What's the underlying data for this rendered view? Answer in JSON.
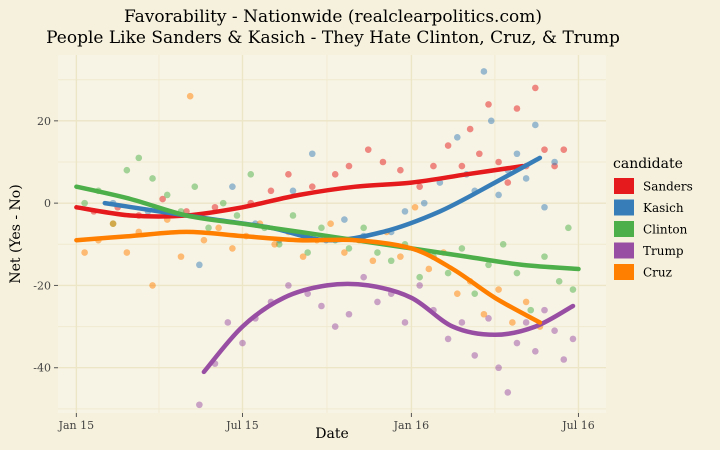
{
  "chart_data": {
    "type": "scatter",
    "title_lines": [
      "Favorability - Nationwide (realclearpolitics.com)",
      "People Like Sanders & Kasich - They Hate Clinton, Cruz, & Trump"
    ],
    "xlabel": "Date",
    "ylabel": "Net (Yes - No)",
    "x_ticks": [
      "Jan 15",
      "Jul 15",
      "Jan 16",
      "Jul 16"
    ],
    "x_range": [
      "2014-12-12",
      "2016-07-31"
    ],
    "y_ticks": [
      -40,
      -20,
      0,
      20
    ],
    "ylim": [
      -51,
      36
    ],
    "grid": true,
    "legend": {
      "title": "candidate",
      "position": "right"
    },
    "series": [
      {
        "name": "Sanders",
        "color": "#e41a1c",
        "trend": [
          [
            "2015-01-01",
            -1
          ],
          [
            "2015-03-01",
            -3
          ],
          [
            "2015-05-01",
            -3
          ],
          [
            "2015-07-01",
            -1
          ],
          [
            "2015-09-01",
            2
          ],
          [
            "2015-11-01",
            4
          ],
          [
            "2016-01-01",
            5
          ],
          [
            "2016-03-01",
            7
          ],
          [
            "2016-05-01",
            9
          ]
        ],
        "points": [
          [
            "2015-01-20",
            -2
          ],
          [
            "2015-02-15",
            -1
          ],
          [
            "2015-03-10",
            -3
          ],
          [
            "2015-04-05",
            1
          ],
          [
            "2015-05-01",
            -2
          ],
          [
            "2015-06-01",
            -1
          ],
          [
            "2015-07-10",
            0
          ],
          [
            "2015-08-01",
            3
          ],
          [
            "2015-08-20",
            7
          ],
          [
            "2015-09-15",
            4
          ],
          [
            "2015-10-10",
            7
          ],
          [
            "2015-10-25",
            9
          ],
          [
            "2015-11-15",
            13
          ],
          [
            "2015-12-01",
            10
          ],
          [
            "2015-12-20",
            8
          ],
          [
            "2016-01-10",
            4
          ],
          [
            "2016-01-25",
            9
          ],
          [
            "2016-02-10",
            14
          ],
          [
            "2016-02-25",
            9
          ],
          [
            "2016-03-05",
            18
          ],
          [
            "2016-03-15",
            12
          ],
          [
            "2016-03-25",
            24
          ],
          [
            "2016-04-05",
            10
          ],
          [
            "2016-04-15",
            5
          ],
          [
            "2016-04-25",
            23
          ],
          [
            "2016-05-05",
            9
          ],
          [
            "2016-05-15",
            28
          ],
          [
            "2016-05-25",
            13
          ],
          [
            "2016-06-05",
            9
          ],
          [
            "2016-06-15",
            13
          ]
        ]
      },
      {
        "name": "Kasich",
        "color": "#377eb8",
        "trend": [
          [
            "2015-02-01",
            0
          ],
          [
            "2015-04-01",
            -2
          ],
          [
            "2015-06-01",
            -4
          ],
          [
            "2015-08-01",
            -6
          ],
          [
            "2015-10-01",
            -9
          ],
          [
            "2015-12-01",
            -7
          ],
          [
            "2016-02-01",
            -2
          ],
          [
            "2016-04-01",
            5
          ],
          [
            "2016-05-20",
            11
          ]
        ],
        "points": [
          [
            "2015-02-10",
            0
          ],
          [
            "2015-03-20",
            -2
          ],
          [
            "2015-05-15",
            -15
          ],
          [
            "2015-06-20",
            4
          ],
          [
            "2015-07-15",
            -5
          ],
          [
            "2015-08-10",
            -9
          ],
          [
            "2015-08-25",
            3
          ],
          [
            "2015-09-15",
            12
          ],
          [
            "2015-09-30",
            -9
          ],
          [
            "2015-10-20",
            -4
          ],
          [
            "2015-11-10",
            -8
          ],
          [
            "2015-12-10",
            -7
          ],
          [
            "2015-12-25",
            -2
          ],
          [
            "2016-01-15",
            0
          ],
          [
            "2016-02-01",
            5
          ],
          [
            "2016-02-20",
            16
          ],
          [
            "2016-03-01",
            7
          ],
          [
            "2016-03-10",
            3
          ],
          [
            "2016-03-20",
            32
          ],
          [
            "2016-03-28",
            20
          ],
          [
            "2016-04-05",
            2
          ],
          [
            "2016-04-15",
            8
          ],
          [
            "2016-04-25",
            12
          ],
          [
            "2016-05-05",
            6
          ],
          [
            "2016-05-15",
            19
          ],
          [
            "2016-05-25",
            -1
          ],
          [
            "2016-06-05",
            10
          ]
        ]
      },
      {
        "name": "Clinton",
        "color": "#4daf4a",
        "trend": [
          [
            "2015-01-01",
            4
          ],
          [
            "2015-03-01",
            1
          ],
          [
            "2015-05-01",
            -3
          ],
          [
            "2015-07-01",
            -5
          ],
          [
            "2015-09-01",
            -7
          ],
          [
            "2015-11-01",
            -9
          ],
          [
            "2016-01-01",
            -11
          ],
          [
            "2016-03-01",
            -13
          ],
          [
            "2016-05-01",
            -15
          ],
          [
            "2016-07-01",
            -16
          ]
        ],
        "points": [
          [
            "2015-01-10",
            0
          ],
          [
            "2015-01-25",
            3
          ],
          [
            "2015-02-10",
            -5
          ],
          [
            "2015-02-25",
            8
          ],
          [
            "2015-03-10",
            11
          ],
          [
            "2015-03-25",
            6
          ],
          [
            "2015-04-10",
            2
          ],
          [
            "2015-04-25",
            -2
          ],
          [
            "2015-05-10",
            4
          ],
          [
            "2015-05-25",
            -6
          ],
          [
            "2015-06-10",
            0
          ],
          [
            "2015-06-25",
            -3
          ],
          [
            "2015-07-10",
            7
          ],
          [
            "2015-07-25",
            -6
          ],
          [
            "2015-08-10",
            -10
          ],
          [
            "2015-08-25",
            -3
          ],
          [
            "2015-09-10",
            -12
          ],
          [
            "2015-09-25",
            -6
          ],
          [
            "2015-10-10",
            -9
          ],
          [
            "2015-10-25",
            -11
          ],
          [
            "2015-11-10",
            -6
          ],
          [
            "2015-11-25",
            -12
          ],
          [
            "2015-12-10",
            -14
          ],
          [
            "2015-12-25",
            -10
          ],
          [
            "2016-01-10",
            -18
          ],
          [
            "2016-01-25",
            -13
          ],
          [
            "2016-02-10",
            -17
          ],
          [
            "2016-02-25",
            -11
          ],
          [
            "2016-03-10",
            -22
          ],
          [
            "2016-03-25",
            -15
          ],
          [
            "2016-04-10",
            -10
          ],
          [
            "2016-04-25",
            -17
          ],
          [
            "2016-05-10",
            -26
          ],
          [
            "2016-05-25",
            -13
          ],
          [
            "2016-06-10",
            -19
          ],
          [
            "2016-06-20",
            -6
          ],
          [
            "2016-06-25",
            -21
          ]
        ]
      },
      {
        "name": "Trump",
        "color": "#984ea3",
        "trend": [
          [
            "2015-05-20",
            -41
          ],
          [
            "2015-07-01",
            -30
          ],
          [
            "2015-08-15",
            -23
          ],
          [
            "2015-10-01",
            -20
          ],
          [
            "2015-11-15",
            -20
          ],
          [
            "2016-01-01",
            -23
          ],
          [
            "2016-02-15",
            -30
          ],
          [
            "2016-04-01",
            -32
          ],
          [
            "2016-05-15",
            -30
          ],
          [
            "2016-06-25",
            -25
          ]
        ],
        "points": [
          [
            "2015-05-15",
            -49
          ],
          [
            "2015-06-01",
            -39
          ],
          [
            "2015-06-15",
            -29
          ],
          [
            "2015-07-01",
            -34
          ],
          [
            "2015-07-15",
            -28
          ],
          [
            "2015-08-01",
            -24
          ],
          [
            "2015-08-20",
            -20
          ],
          [
            "2015-09-10",
            -22
          ],
          [
            "2015-09-25",
            -25
          ],
          [
            "2015-10-10",
            -30
          ],
          [
            "2015-10-25",
            -27
          ],
          [
            "2015-11-10",
            -18
          ],
          [
            "2015-11-25",
            -24
          ],
          [
            "2015-12-10",
            -22
          ],
          [
            "2015-12-25",
            -29
          ],
          [
            "2016-01-10",
            -20
          ],
          [
            "2016-01-25",
            -26
          ],
          [
            "2016-02-10",
            -33
          ],
          [
            "2016-02-25",
            -29
          ],
          [
            "2016-03-10",
            -37
          ],
          [
            "2016-03-25",
            -28
          ],
          [
            "2016-04-05",
            -40
          ],
          [
            "2016-04-15",
            -46
          ],
          [
            "2016-04-25",
            -34
          ],
          [
            "2016-05-05",
            -29
          ],
          [
            "2016-05-15",
            -36
          ],
          [
            "2016-05-25",
            -26
          ],
          [
            "2016-06-05",
            -31
          ],
          [
            "2016-06-15",
            -38
          ],
          [
            "2016-06-25",
            -33
          ]
        ]
      },
      {
        "name": "Cruz",
        "color": "#ff7f00",
        "trend": [
          [
            "2015-01-01",
            -9
          ],
          [
            "2015-03-01",
            -8
          ],
          [
            "2015-05-01",
            -7
          ],
          [
            "2015-07-01",
            -8
          ],
          [
            "2015-09-01",
            -9
          ],
          [
            "2015-11-01",
            -9
          ],
          [
            "2016-01-01",
            -11
          ],
          [
            "2016-02-15",
            -16
          ],
          [
            "2016-04-01",
            -23
          ],
          [
            "2016-05-20",
            -29
          ]
        ],
        "points": [
          [
            "2015-01-10",
            -12
          ],
          [
            "2015-01-25",
            -9
          ],
          [
            "2015-02-10",
            -5
          ],
          [
            "2015-02-25",
            -12
          ],
          [
            "2015-03-10",
            -7
          ],
          [
            "2015-03-25",
            -20
          ],
          [
            "2015-04-10",
            -4
          ],
          [
            "2015-04-25",
            -13
          ],
          [
            "2015-05-05",
            26
          ],
          [
            "2015-05-20",
            -9
          ],
          [
            "2015-06-05",
            -6
          ],
          [
            "2015-06-20",
            -11
          ],
          [
            "2015-07-05",
            -8
          ],
          [
            "2015-07-20",
            -5
          ],
          [
            "2015-08-05",
            -10
          ],
          [
            "2015-08-20",
            -7
          ],
          [
            "2015-09-05",
            -13
          ],
          [
            "2015-09-20",
            -9
          ],
          [
            "2015-10-05",
            -5
          ],
          [
            "2015-10-20",
            -12
          ],
          [
            "2015-11-05",
            -9
          ],
          [
            "2015-11-20",
            -14
          ],
          [
            "2015-12-05",
            -7
          ],
          [
            "2015-12-20",
            -13
          ],
          [
            "2016-01-05",
            -1
          ],
          [
            "2016-01-20",
            -16
          ],
          [
            "2016-02-05",
            -12
          ],
          [
            "2016-02-20",
            -22
          ],
          [
            "2016-03-05",
            -19
          ],
          [
            "2016-03-20",
            -27
          ],
          [
            "2016-04-05",
            -21
          ],
          [
            "2016-04-20",
            -29
          ],
          [
            "2016-05-05",
            -24
          ],
          [
            "2016-05-20",
            -30
          ]
        ]
      }
    ]
  }
}
